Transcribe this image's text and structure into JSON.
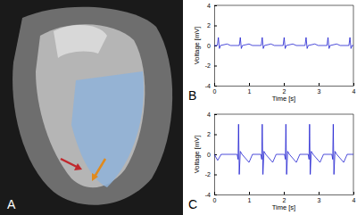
{
  "image_panel": {
    "label": "A"
  },
  "chart_data": [
    {
      "type": "line",
      "annotations": [
        "B"
      ],
      "x_label": "Time [s]",
      "y_label": "Voltage [mV]",
      "xlim": [
        0,
        4
      ],
      "xticks": [
        0,
        1,
        2,
        3,
        4
      ],
      "ylim": [
        -4,
        4
      ],
      "yticks": [
        -4,
        -2,
        0,
        2,
        4
      ],
      "color": "#1f1fd1",
      "grid": false,
      "x": [
        0,
        0.09,
        0.12,
        0.15,
        0.18,
        0.37,
        0.47,
        0.72,
        0.75,
        0.78,
        0.81,
        1.0,
        1.1,
        1.35,
        1.38,
        1.41,
        1.44,
        1.63,
        1.73,
        1.98,
        2.01,
        2.04,
        2.07,
        2.26,
        2.36,
        2.61,
        2.64,
        2.67,
        2.7,
        2.89,
        2.99,
        3.24,
        3.27,
        3.3,
        3.33,
        3.52,
        3.62,
        3.87,
        3.9,
        3.93,
        3.96,
        4.0
      ],
      "values": [
        0,
        0,
        0.8,
        -0.3,
        0,
        0.15,
        0,
        0,
        0.8,
        -0.3,
        0,
        0.15,
        0,
        0,
        0.8,
        -0.3,
        0,
        0.15,
        0,
        0,
        0.8,
        -0.3,
        0,
        0.15,
        0,
        0,
        0.8,
        -0.3,
        0,
        0.15,
        0,
        0,
        0.8,
        -0.3,
        0,
        0.15,
        0,
        0,
        0.8,
        -0.3,
        0,
        0
      ]
    },
    {
      "type": "line",
      "annotations": [
        "C"
      ],
      "x_label": "Time [s]",
      "y_label": "Voltage [mV]",
      "xlim": [
        0,
        4
      ],
      "xticks": [
        0,
        1,
        2,
        3,
        4
      ],
      "ylim": [
        -4,
        4
      ],
      "yticks": [
        -4,
        -2,
        0,
        2,
        4
      ],
      "color": "#1f1fd1",
      "grid": false,
      "x": [
        0,
        0.1,
        0.2,
        0.66,
        0.685,
        0.7,
        0.72,
        0.75,
        0.8,
        1.0,
        1.1,
        1.34,
        1.365,
        1.38,
        1.4,
        1.43,
        1.48,
        1.68,
        1.78,
        2.02,
        2.045,
        2.06,
        2.08,
        2.11,
        2.16,
        2.36,
        2.46,
        2.7,
        2.725,
        2.74,
        2.76,
        2.79,
        2.84,
        3.04,
        3.14,
        3.38,
        3.405,
        3.42,
        3.44,
        3.47,
        3.52,
        3.72,
        3.82,
        4.0
      ],
      "values": [
        0,
        -0.6,
        0,
        0,
        -0.5,
        3.0,
        -2.0,
        0.3,
        0,
        -0.8,
        0,
        0,
        -0.5,
        3.0,
        -2.0,
        0.3,
        0,
        -0.8,
        0,
        0,
        -0.5,
        3.0,
        -2.0,
        0.3,
        0,
        -0.8,
        0,
        0,
        -0.5,
        3.0,
        -2.0,
        0.3,
        0,
        -0.8,
        0,
        0,
        -0.5,
        3.0,
        -2.0,
        0.3,
        0,
        -0.8,
        0,
        0
      ]
    }
  ]
}
